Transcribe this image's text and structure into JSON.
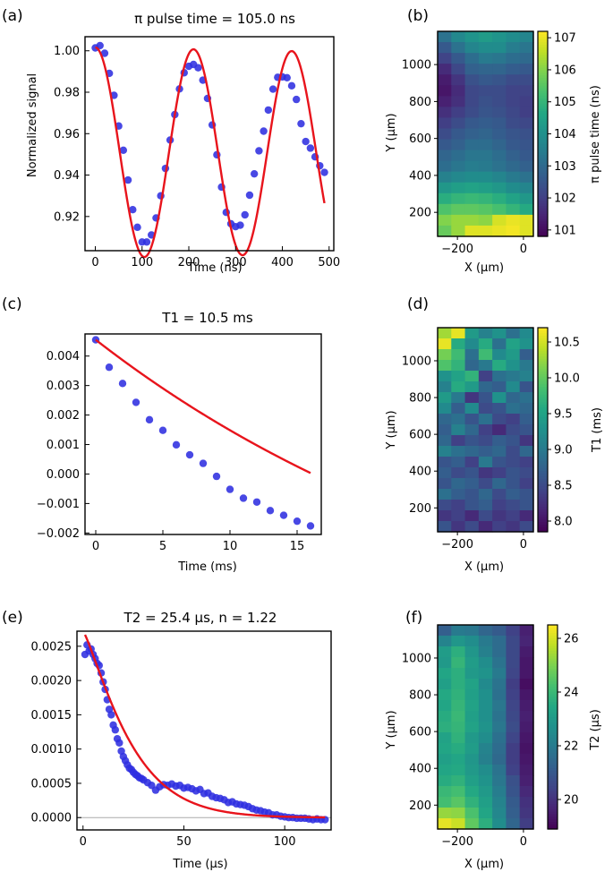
{
  "chart_data": [
    {
      "panel": "(a)",
      "type": "scatter",
      "title": "π pulse time = 105.0 ns",
      "xlabel": "Time (ns)",
      "ylabel": "Normalized signal",
      "xlim": [
        -22,
        510
      ],
      "ylim": [
        0.9035,
        1.0068
      ],
      "xticks": [
        0,
        100,
        200,
        300,
        400,
        500
      ],
      "yticks": [
        0.92,
        0.94,
        0.96,
        0.98,
        1.0
      ],
      "ytick_decimals": 2,
      "fit": {
        "model": "damped_cosine",
        "offset": 0.9508,
        "amplitude": 0.0508,
        "period": 210,
        "decay_us": 11970,
        "color": "#e8141c"
      },
      "series": [
        {
          "name": "data",
          "color": "#2f2fe0",
          "x": [
            0,
            10,
            20,
            30,
            40,
            50,
            60,
            70,
            80,
            90,
            100,
            110,
            120,
            130,
            140,
            150,
            160,
            170,
            180,
            190,
            200,
            210,
            220,
            230,
            240,
            250,
            260,
            270,
            280,
            290,
            300,
            310,
            320,
            330,
            340,
            350,
            360,
            370,
            380,
            390,
            400,
            410,
            420,
            430,
            440,
            450,
            460,
            470,
            480,
            490
          ],
          "y": [
            1.0014,
            1.0025,
            0.9988,
            0.9891,
            0.9785,
            0.9637,
            0.952,
            0.9376,
            0.9233,
            0.9148,
            0.9077,
            0.9077,
            0.9111,
            0.9193,
            0.93,
            0.9432,
            0.9569,
            0.9692,
            0.9816,
            0.9894,
            0.9925,
            0.9934,
            0.9918,
            0.9858,
            0.977,
            0.9642,
            0.9498,
            0.9342,
            0.922,
            0.9165,
            0.9151,
            0.9158,
            0.9208,
            0.9303,
            0.9406,
            0.9517,
            0.9612,
            0.9714,
            0.9815,
            0.9872,
            0.9874,
            0.987,
            0.9831,
            0.9765,
            0.9648,
            0.9562,
            0.953,
            0.9488,
            0.9445,
            0.9413
          ]
        }
      ]
    },
    {
      "panel": "(b)",
      "type": "heatmap",
      "xlabel": "X (μm)",
      "ylabel": "Y (μm)",
      "xlim": [
        -260,
        30
      ],
      "ylim": [
        70,
        1180
      ],
      "xticks": [
        -200,
        0
      ],
      "yticks": [
        200,
        400,
        600,
        800,
        1000
      ],
      "colorbar": {
        "label": "π pulse time (ns)",
        "range": [
          100.8,
          107.2
        ],
        "ticks": [
          101,
          102,
          103,
          104,
          105,
          106,
          107
        ]
      },
      "grid": [
        [
          103.2,
          103.8,
          104.1,
          104.3,
          104.1,
          103.9,
          103.7
        ],
        [
          102.6,
          103.2,
          103.7,
          103.9,
          103.9,
          103.5,
          103.3
        ],
        [
          102.1,
          102.6,
          103.1,
          103.4,
          103.3,
          103.1,
          103.0
        ],
        [
          101.6,
          102.2,
          102.8,
          102.9,
          102.9,
          102.7,
          102.6
        ],
        [
          101.3,
          101.8,
          102.4,
          102.6,
          102.5,
          102.3,
          102.3
        ],
        [
          101.2,
          101.6,
          102.2,
          102.3,
          102.3,
          102.1,
          102.1
        ],
        [
          101.4,
          101.7,
          102.2,
          102.4,
          102.3,
          102.1,
          102.0
        ],
        [
          101.7,
          102.0,
          102.3,
          102.5,
          102.4,
          102.2,
          102.0
        ],
        [
          102.0,
          102.3,
          102.6,
          102.7,
          102.6,
          102.3,
          102.2
        ],
        [
          102.3,
          102.6,
          102.8,
          102.9,
          102.7,
          102.5,
          102.4
        ],
        [
          102.6,
          102.8,
          103.1,
          103.1,
          102.9,
          102.6,
          102.5
        ],
        [
          102.9,
          103.1,
          103.3,
          103.3,
          103.1,
          102.8,
          102.6
        ],
        [
          103.1,
          103.3,
          103.5,
          103.4,
          103.2,
          103.0,
          102.8
        ],
        [
          103.6,
          103.8,
          103.9,
          103.9,
          103.7,
          103.4,
          103.2
        ],
        [
          104.2,
          104.4,
          104.5,
          104.4,
          104.2,
          103.9,
          103.7
        ],
        [
          104.8,
          105.0,
          105.1,
          105.0,
          104.8,
          104.5,
          104.2
        ],
        [
          105.4,
          105.6,
          105.6,
          105.5,
          105.3,
          105.0,
          104.7
        ],
        [
          106.0,
          106.2,
          106.2,
          106.1,
          106.8,
          107.0,
          106.9
        ],
        [
          105.7,
          106.2,
          106.9,
          106.9,
          107.0,
          107.1,
          106.9
        ]
      ]
    },
    {
      "panel": "(c)",
      "type": "scatter",
      "title": "T1 = 10.5 ms",
      "xlabel": "Time (ms)",
      "ylabel": "",
      "xlim": [
        -0.8,
        16.8
      ],
      "ylim": [
        -0.00205,
        0.00475
      ],
      "xticks": [
        0,
        5,
        10,
        15
      ],
      "yticks": [
        -0.002,
        -0.001,
        0.0,
        0.001,
        0.002,
        0.003,
        0.004
      ],
      "ytick_decimals": 3,
      "fit": {
        "model": "exp_decay",
        "offset": -0.00748,
        "amplitude": 0.01203,
        "tau": 34.0,
        "color": "#e8141c"
      },
      "series": [
        {
          "name": "data",
          "color": "#2f2fe0",
          "x": [
            0,
            1,
            2,
            3,
            4,
            5,
            6,
            7,
            8,
            9,
            10,
            11,
            12,
            13,
            14,
            15,
            16
          ],
          "y": [
            0.00455,
            0.00362,
            0.00307,
            0.00243,
            0.00184,
            0.00148,
            0.00099,
            0.00065,
            0.00036,
            -8e-05,
            -0.00052,
            -0.00082,
            -0.00095,
            -0.00124,
            -0.0014,
            -0.0016,
            -0.00176
          ]
        }
      ]
    },
    {
      "panel": "(d)",
      "type": "heatmap",
      "xlabel": "X (μm)",
      "ylabel": "Y (μm)",
      "xlim": [
        -260,
        30
      ],
      "ylim": [
        70,
        1180
      ],
      "xticks": [
        -200,
        0
      ],
      "yticks": [
        200,
        400,
        600,
        800,
        1000
      ],
      "colorbar": {
        "label": "T1 (ms)",
        "range": [
          7.85,
          10.7
        ],
        "ticks": [
          8.0,
          8.5,
          9.0,
          9.5,
          10.0,
          10.5
        ]
      },
      "grid": [
        [
          10.3,
          10.6,
          9.4,
          9.1,
          9.3,
          8.9,
          9.2
        ],
        [
          10.6,
          9.6,
          9.2,
          9.6,
          8.9,
          9.5,
          9.3
        ],
        [
          10.1,
          9.8,
          8.9,
          9.8,
          9.2,
          9.4,
          8.7
        ],
        [
          9.9,
          9.7,
          8.8,
          9.0,
          9.6,
          9.3,
          9.0
        ],
        [
          9.3,
          9.5,
          9.7,
          8.4,
          8.9,
          9.0,
          9.1
        ],
        [
          9.1,
          9.6,
          9.4,
          8.8,
          8.7,
          9.2,
          8.6
        ],
        [
          9.4,
          9.0,
          8.3,
          8.6,
          9.3,
          8.8,
          8.9
        ],
        [
          9.2,
          8.7,
          9.2,
          8.5,
          8.6,
          8.9,
          8.8
        ],
        [
          8.8,
          8.9,
          8.6,
          8.9,
          8.5,
          8.4,
          8.7
        ],
        [
          8.7,
          9.1,
          8.8,
          8.4,
          8.2,
          8.5,
          8.6
        ],
        [
          8.8,
          8.4,
          8.6,
          8.5,
          8.7,
          8.6,
          8.3
        ],
        [
          9.1,
          8.9,
          8.8,
          8.7,
          8.8,
          8.5,
          8.8
        ],
        [
          8.6,
          8.7,
          8.4,
          9.0,
          8.6,
          8.5,
          8.4
        ],
        [
          8.7,
          8.5,
          8.6,
          8.3,
          8.4,
          8.6,
          8.5
        ],
        [
          8.6,
          8.8,
          8.7,
          8.5,
          8.8,
          8.6,
          8.4
        ],
        [
          8.9,
          8.7,
          8.6,
          8.8,
          8.5,
          8.7,
          8.6
        ],
        [
          8.5,
          8.4,
          8.6,
          8.7,
          8.4,
          8.5,
          8.6
        ],
        [
          8.3,
          8.4,
          8.2,
          8.5,
          8.3,
          8.4,
          8.2
        ],
        [
          8.6,
          8.3,
          8.5,
          8.2,
          8.4,
          8.3,
          8.5
        ]
      ]
    },
    {
      "panel": "(e)",
      "type": "scatter",
      "title": "T2 = 25.4 μs, n = 1.22",
      "xlabel": "Time (μs)",
      "ylabel": "",
      "xlim": [
        -3,
        123
      ],
      "ylim": [
        -0.00018,
        0.00272
      ],
      "xticks": [
        0,
        50,
        100
      ],
      "yticks": [
        0.0,
        0.0005,
        0.001,
        0.0015,
        0.002,
        0.0025
      ],
      "ytick_decimals": 4,
      "hline": 0,
      "fit": {
        "model": "stretched_exp",
        "amplitude": 0.00272,
        "T2": 25.4,
        "n": 1.22,
        "color": "#e8141c"
      },
      "series": [
        {
          "name": "data",
          "color": "#2f2fe0",
          "x": [
            1,
            2,
            3,
            4,
            5,
            6,
            7,
            8,
            9,
            10,
            11,
            12,
            13,
            14,
            15,
            16,
            17,
            18,
            19,
            20,
            21,
            22,
            23,
            24,
            25,
            26,
            27,
            28,
            29,
            30,
            32,
            34,
            36,
            38,
            40,
            42,
            44,
            46,
            48,
            50,
            52,
            54,
            56,
            58,
            60,
            62,
            64,
            66,
            68,
            70,
            72,
            74,
            76,
            78,
            80,
            82,
            84,
            86,
            88,
            90,
            92,
            94,
            96,
            98,
            100,
            102,
            104,
            106,
            108,
            110,
            112,
            114,
            116,
            118,
            120
          ],
          "y": [
            0.00238,
            0.00252,
            0.00243,
            0.00246,
            0.00238,
            0.00232,
            0.00225,
            0.00222,
            0.00211,
            0.00198,
            0.00187,
            0.00172,
            0.00158,
            0.0015,
            0.00135,
            0.00128,
            0.00115,
            0.00109,
            0.00097,
            0.00089,
            0.00083,
            0.00077,
            0.00072,
            0.0007,
            0.00066,
            0.00063,
            0.00061,
            0.00058,
            0.00057,
            0.00055,
            0.00051,
            0.00047,
            0.0004,
            0.00045,
            0.00048,
            0.00047,
            0.00049,
            0.00046,
            0.00047,
            0.00043,
            0.00044,
            0.00042,
            0.00039,
            0.00041,
            0.00035,
            0.00036,
            0.00031,
            0.00029,
            0.00028,
            0.00026,
            0.00022,
            0.00023,
            0.0002,
            0.00019,
            0.00018,
            0.00016,
            0.00013,
            0.00011,
            0.0001,
            8e-05,
            7e-05,
            4e-05,
            4e-05,
            2e-05,
            1e-05,
            0.0,
            0.0,
            -1e-05,
            -1e-05,
            -1e-05,
            -2e-05,
            -3e-05,
            -2e-05,
            -3e-05,
            -3e-05
          ]
        }
      ]
    },
    {
      "panel": "(f)",
      "type": "heatmap",
      "xlabel": "X (μm)",
      "ylabel": "Y (μm)",
      "xlim": [
        -260,
        30
      ],
      "ylim": [
        70,
        1180
      ],
      "xticks": [
        -200,
        0
      ],
      "yticks": [
        200,
        400,
        600,
        800,
        1000
      ],
      "colorbar": {
        "label": "T2 (μs)",
        "range": [
          18.9,
          26.5
        ],
        "ticks": [
          20,
          22,
          24,
          26
        ]
      },
      "grid": [
        [
          21.2,
          22.0,
          21.9,
          21.4,
          21.1,
          20.4,
          19.6
        ],
        [
          22.3,
          22.9,
          22.6,
          22.0,
          21.6,
          20.6,
          19.7
        ],
        [
          23.1,
          23.7,
          22.9,
          22.2,
          21.6,
          20.6,
          19.5
        ],
        [
          23.0,
          23.9,
          23.1,
          22.6,
          21.8,
          20.6,
          19.4
        ],
        [
          23.4,
          23.7,
          23.0,
          22.8,
          22.0,
          20.5,
          19.4
        ],
        [
          23.2,
          23.7,
          23.3,
          22.5,
          21.8,
          20.3,
          19.2
        ],
        [
          23.5,
          23.8,
          23.2,
          22.7,
          21.7,
          20.4,
          19.4
        ],
        [
          23.4,
          23.9,
          23.3,
          22.7,
          21.9,
          20.5,
          19.5
        ],
        [
          23.6,
          24.0,
          23.2,
          22.7,
          21.8,
          20.6,
          19.6
        ],
        [
          23.7,
          23.9,
          23.3,
          22.8,
          21.9,
          20.7,
          19.5
        ],
        [
          23.3,
          23.8,
          23.0,
          22.6,
          21.7,
          20.5,
          19.4
        ],
        [
          23.4,
          23.6,
          23.1,
          22.3,
          21.6,
          20.3,
          19.3
        ],
        [
          23.2,
          23.4,
          22.9,
          22.2,
          21.5,
          20.3,
          19.4
        ],
        [
          23.4,
          23.5,
          23.0,
          22.6,
          21.8,
          20.4,
          19.5
        ],
        [
          23.6,
          23.8,
          23.2,
          22.8,
          21.9,
          20.8,
          19.6
        ],
        [
          24.0,
          24.2,
          23.5,
          23.0,
          22.1,
          20.9,
          19.8
        ],
        [
          24.2,
          24.5,
          23.8,
          23.2,
          22.3,
          21.1,
          20.0
        ],
        [
          25.3,
          25.2,
          24.3,
          23.4,
          22.4,
          21.2,
          20.1
        ],
        [
          26.2,
          25.9,
          24.6,
          23.7,
          22.6,
          21.4,
          20.3
        ]
      ]
    }
  ]
}
